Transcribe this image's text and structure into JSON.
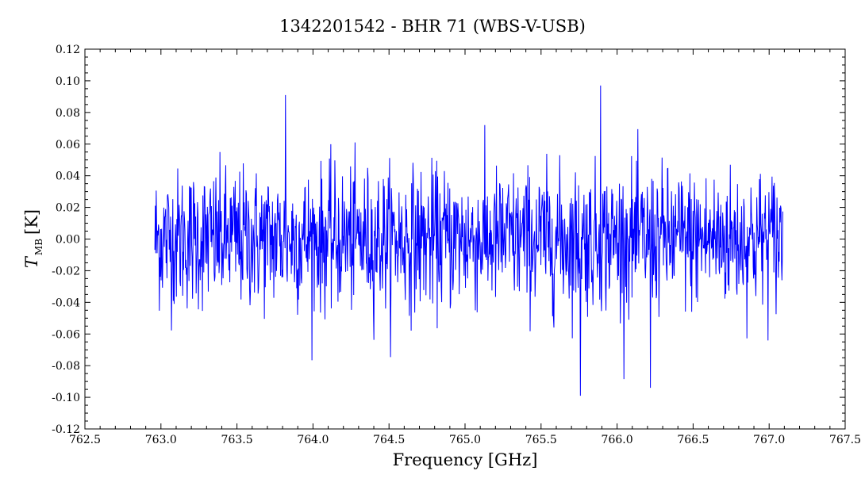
{
  "chart_data": {
    "type": "line",
    "title": "1342201542 - BHR 71 (WBS-V-USB)",
    "xlabel": "Frequency [GHz]",
    "ylabel": {
      "main": "T",
      "sub": "MB",
      "unit": "[K]"
    },
    "xlim": [
      762.5,
      767.5
    ],
    "ylim": [
      -0.12,
      0.12
    ],
    "xticks": [
      "762.5",
      "763.0",
      "763.5",
      "764.0",
      "764.5",
      "765.0",
      "765.5",
      "766.0",
      "766.5",
      "767.0",
      "767.5"
    ],
    "yticks": [
      "0.12",
      "0.10",
      "0.08",
      "0.06",
      "0.04",
      "0.02",
      "0.00",
      "-0.02",
      "-0.04",
      "-0.06",
      "-0.08",
      "-0.10",
      "-0.12"
    ],
    "grid": false,
    "series": [
      {
        "color": "#0000ff",
        "x_start": 762.96,
        "x_end": 767.09,
        "points": 1400,
        "noise_rms": 0.022,
        "noise_max": 0.097,
        "noise_min": -0.099,
        "note_peaks": [
          {
            "x": 765.89,
            "y": 0.097
          },
          {
            "x": 765.76,
            "y": -0.099
          },
          {
            "x": 763.82,
            "y": 0.091
          },
          {
            "x": 766.22,
            "y": -0.094
          }
        ]
      }
    ]
  }
}
